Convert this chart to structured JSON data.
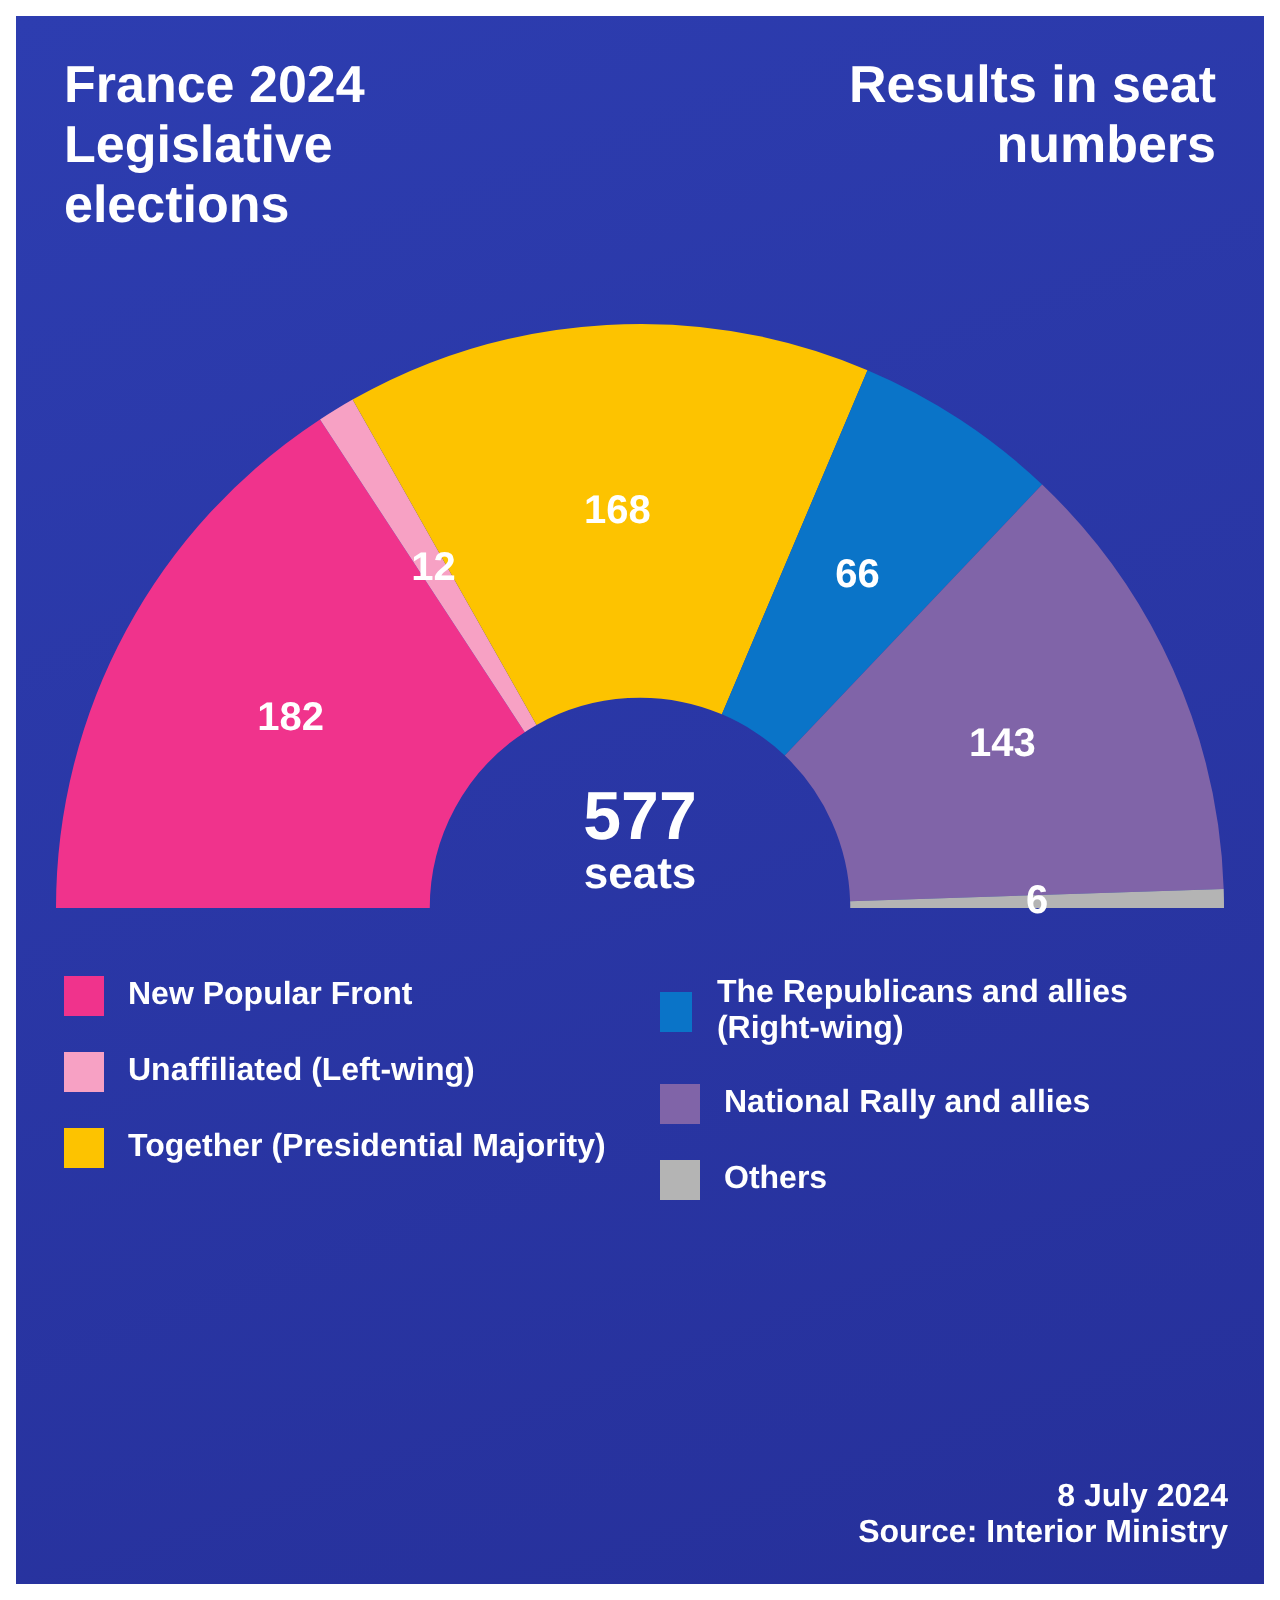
{
  "chart_data": {
    "type": "donut",
    "title": "France 2024 Legislative elections",
    "subtitle": "Results in seat numbers",
    "categories": [
      "New Popular Front",
      "Unaffiliated (Left-wing)",
      "Together (Presidential Majority)",
      "The Republicans and allies (Right-wing)",
      "National Rally and allies",
      "Others"
    ],
    "values": [
      182,
      12,
      168,
      66,
      143,
      6
    ],
    "colors": [
      "#f0338c",
      "#f7a1c4",
      "#fdc300",
      "#0a74c8",
      "#8064a8",
      "#b4b4b4"
    ],
    "data_labels": true,
    "legend": "bottom",
    "annotations": [
      "577 seats",
      "8 July 2024",
      "Source: Interior Ministry"
    ]
  }
}
